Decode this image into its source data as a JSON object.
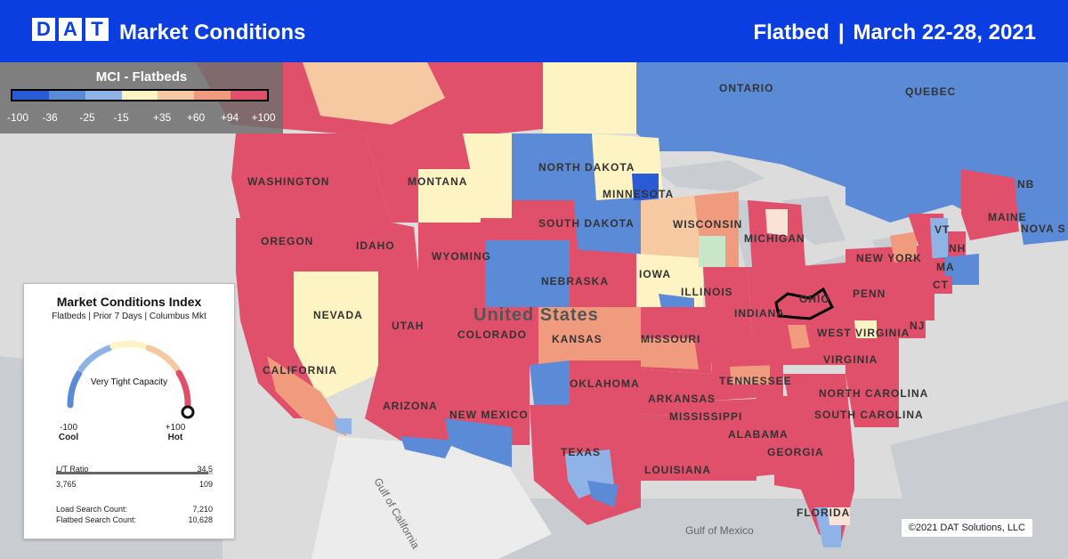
{
  "header": {
    "logo_letters": [
      "D",
      "A",
      "T"
    ],
    "title": "Market Conditions",
    "equipment": "Flatbed",
    "separator": "|",
    "date_range": "March 22-28, 2021"
  },
  "legend": {
    "title": "MCI - Flatbeds",
    "ticks": [
      "-100",
      "-36",
      "-25",
      "-15",
      "+35",
      "+60",
      "+94",
      "+100"
    ],
    "colors": [
      "#2a5bd7",
      "#5b8ad6",
      "#8fb3e6",
      "#fdf3c3",
      "#f6c9a3",
      "#f19b7e",
      "#e0506a"
    ]
  },
  "map_labels": {
    "canada": [
      "ONTARIO",
      "QUEBEC",
      "NB",
      "NOVA S"
    ],
    "states": [
      "WASHINGTON",
      "MONTANA",
      "NORTH DAKOTA",
      "MINNESOTA",
      "OREGON",
      "IDAHO",
      "SOUTH DAKOTA",
      "WISCONSIN",
      "MICHIGAN",
      "WYOMING",
      "NEBRASKA",
      "IOWA",
      "NEVADA",
      "UTAH",
      "COLORADO",
      "ILLINOIS",
      "INDIANA",
      "OHIO",
      "KANSAS",
      "MISSOURI",
      "CALIFORNIA",
      "ARIZONA",
      "NEW MEXICO",
      "OKLAHOMA",
      "ARKANSAS",
      "TENNESSEE",
      "MISSISSIPPI",
      "ALABAMA",
      "GEORGIA",
      "LOUISIANA",
      "TEXAS",
      "FLORIDA",
      "NEW YORK",
      "PENN",
      "WEST VIRGINIA",
      "VIRGINIA",
      "NORTH CAROLINA",
      "SOUTH CAROLINA",
      "MAINE",
      "VT",
      "NH",
      "MA",
      "CT",
      "NJ"
    ],
    "country": "United States",
    "waters": [
      "Gulf of California",
      "Gulf of Mexico"
    ]
  },
  "card": {
    "title": "Market Conditions Index",
    "subtitle": "Flatbeds | Prior 7 Days | Columbus Mkt",
    "capacity": "Very Tight Capacity",
    "gauge_min": "-100",
    "gauge_min_label": "Cool",
    "gauge_max": "+100",
    "gauge_max_label": "Hot",
    "gauge_value": 100,
    "lt_ratio_label": "L/T Ratio",
    "lt_ratio_value": "34.5",
    "lt_left": "3,765",
    "lt_right": "109",
    "load_search_label": "Load Search Count:",
    "load_search_value": "7,210",
    "flatbed_search_label": "Flatbed Search Count:",
    "flatbed_search_value": "10,628"
  },
  "copyright": "©2021 DAT Solutions, LLC"
}
